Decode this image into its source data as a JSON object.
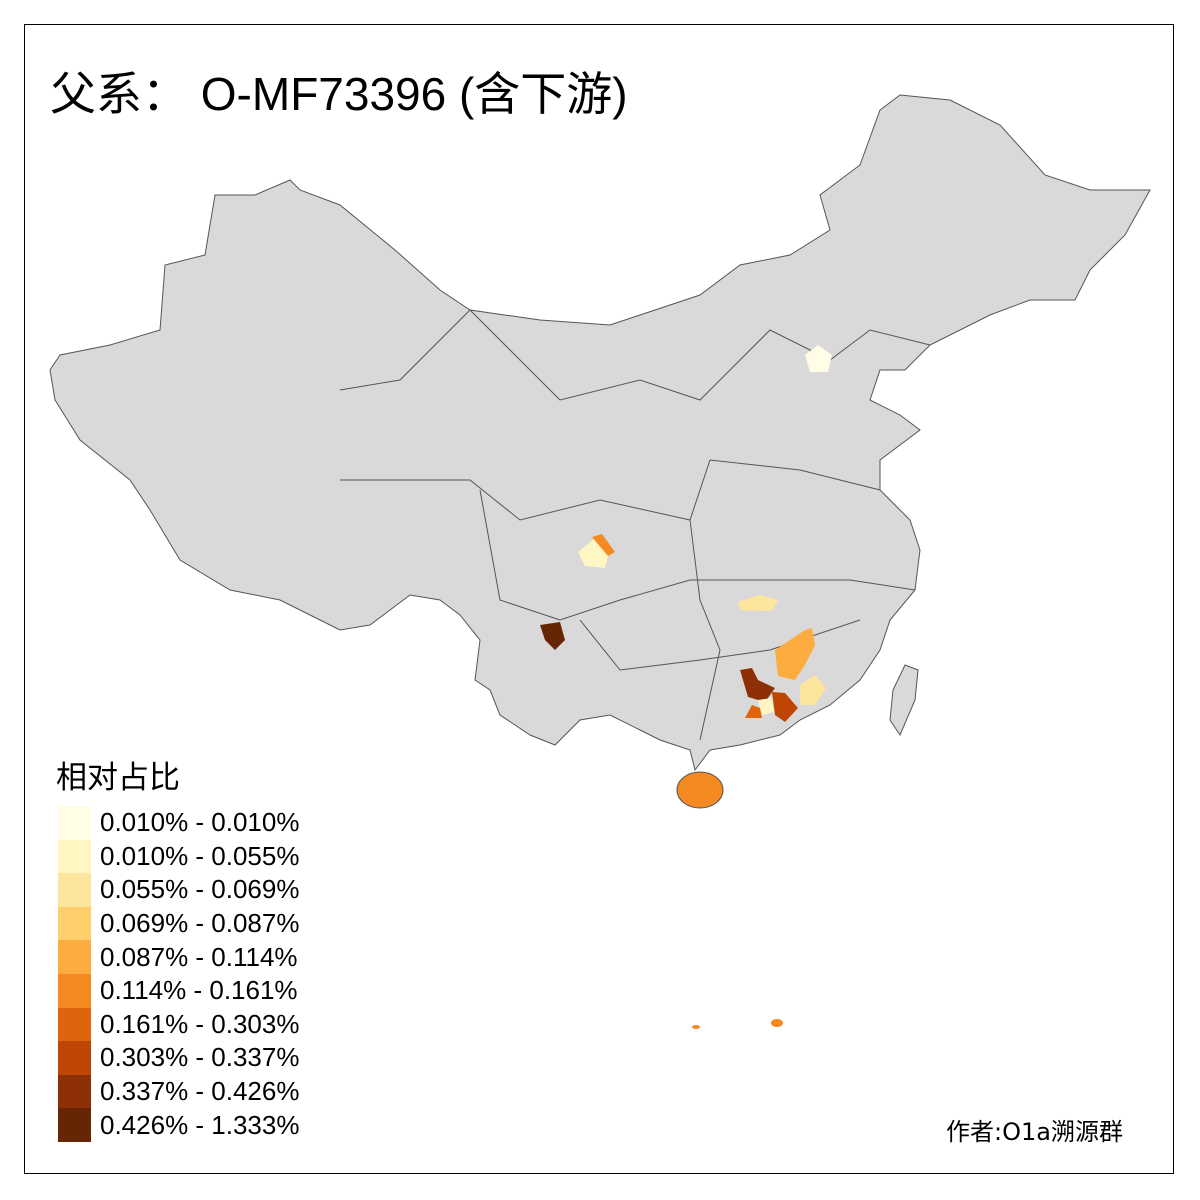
{
  "title": "父系： O-MF73396 (含下游)",
  "legend": {
    "title": "相对占比",
    "items": [
      {
        "label": "0.010% - 0.010%",
        "color": "#fffde5"
      },
      {
        "label": "0.010% - 0.055%",
        "color": "#fff6c3"
      },
      {
        "label": "0.055% - 0.069%",
        "color": "#fee59e"
      },
      {
        "label": "0.069% - 0.087%",
        "color": "#fecf6b"
      },
      {
        "label": "0.087% - 0.114%",
        "color": "#fdac3f"
      },
      {
        "label": "0.114% - 0.161%",
        "color": "#f48a21"
      },
      {
        "label": "0.161% - 0.303%",
        "color": "#e0640e"
      },
      {
        "label": "0.303% - 0.337%",
        "color": "#bf4504"
      },
      {
        "label": "0.337% - 0.426%",
        "color": "#8e3005"
      },
      {
        "label": "0.426% - 1.333%",
        "color": "#662505"
      }
    ]
  },
  "base_color": "#d9d9d9",
  "border_color": "#555555",
  "author": "作者:O1a溯源群"
}
